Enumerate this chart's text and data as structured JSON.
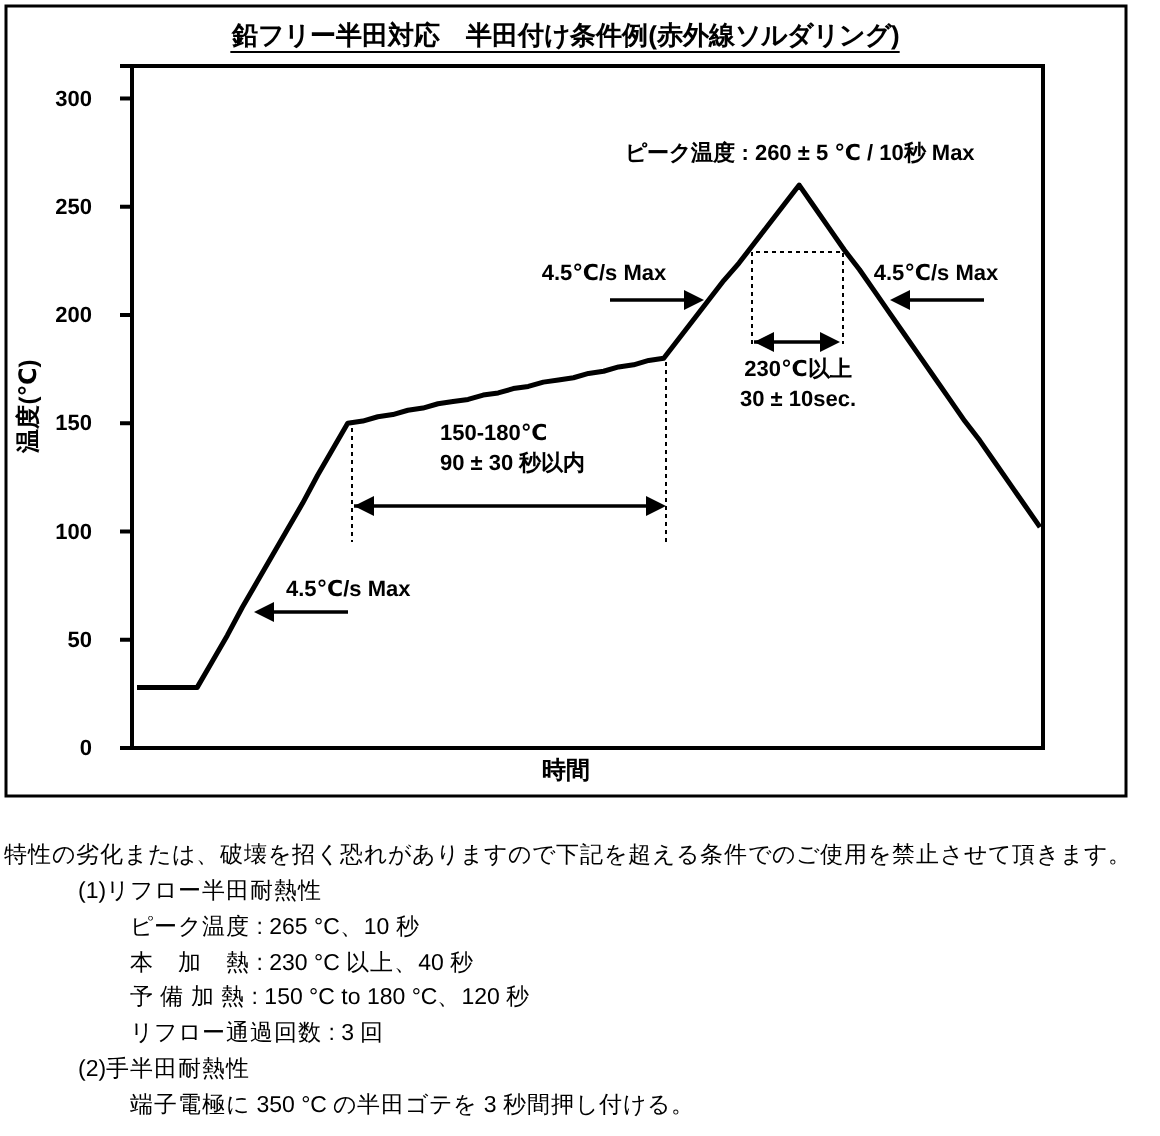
{
  "chart_data": {
    "type": "line",
    "title": "鉛フリー半田対応　半田付け条件例(赤外線ソルダリング)",
    "xlabel": "時間",
    "ylabel": "温度(℃)",
    "categories": [
      null,
      null,
      null,
      null,
      null,
      null,
      null,
      null,
      null,
      null,
      null,
      null,
      null,
      null,
      null,
      null,
      null,
      null,
      null,
      null,
      null,
      null,
      null,
      null,
      null,
      null,
      null,
      null,
      null,
      null,
      null,
      null,
      null,
      null,
      null,
      null,
      null,
      null,
      null,
      null,
      null,
      null,
      null,
      null,
      null,
      null,
      null,
      null,
      null,
      null,
      null,
      null,
      null,
      null,
      null,
      null,
      null,
      null,
      null,
      null,
      null
    ],
    "series": [
      {
        "color": "#000000",
        "values": [
          28,
          28,
          28,
          28,
          28,
          40,
          52,
          65,
          77,
          89,
          101,
          113,
          126,
          138,
          150,
          151,
          153,
          154,
          156,
          157,
          159,
          160,
          161,
          163,
          164,
          166,
          167,
          169,
          170,
          171,
          173,
          174,
          176,
          177,
          179,
          180,
          189,
          198,
          207,
          216,
          224,
          233,
          242,
          251,
          260,
          250,
          240,
          230,
          221,
          211,
          201,
          191,
          181,
          171,
          161,
          151,
          142,
          132,
          122,
          112,
          102
        ]
      }
    ],
    "ylim": [
      0,
      315
    ],
    "yticks": [
      0,
      50,
      100,
      150,
      200,
      250,
      300
    ],
    "tick_labels": "y",
    "line_style": "solid",
    "annotations": [
      "ピーク温度 : 260 ± 5 ℃  /  10秒  Max",
      "4.5℃/s Max",
      "4.5℃/s Max",
      "230℃以上",
      "30 ± 10sec.",
      "150-180℃",
      "90 ± 30 秒以内",
      "4.5℃/s Max",
      "特性の劣化または、破壊を招く恐れがありますので下記を超える条件でのご使用を禁止させて頂きます。",
      "(1)リフロー半田耐熱性",
      "ピーク温度 : 265 °C、10 秒",
      "本　加　熱 : 230 °C 以上、40 秒",
      "予 備 加 熱 : 150 °C to 180 °C、120 秒",
      "リフロー通過回数 : 3 回",
      "(2)手半田耐熱性",
      "端子電極に 350 °C の半田ゴテを 3 秒間押し付ける。"
    ]
  }
}
